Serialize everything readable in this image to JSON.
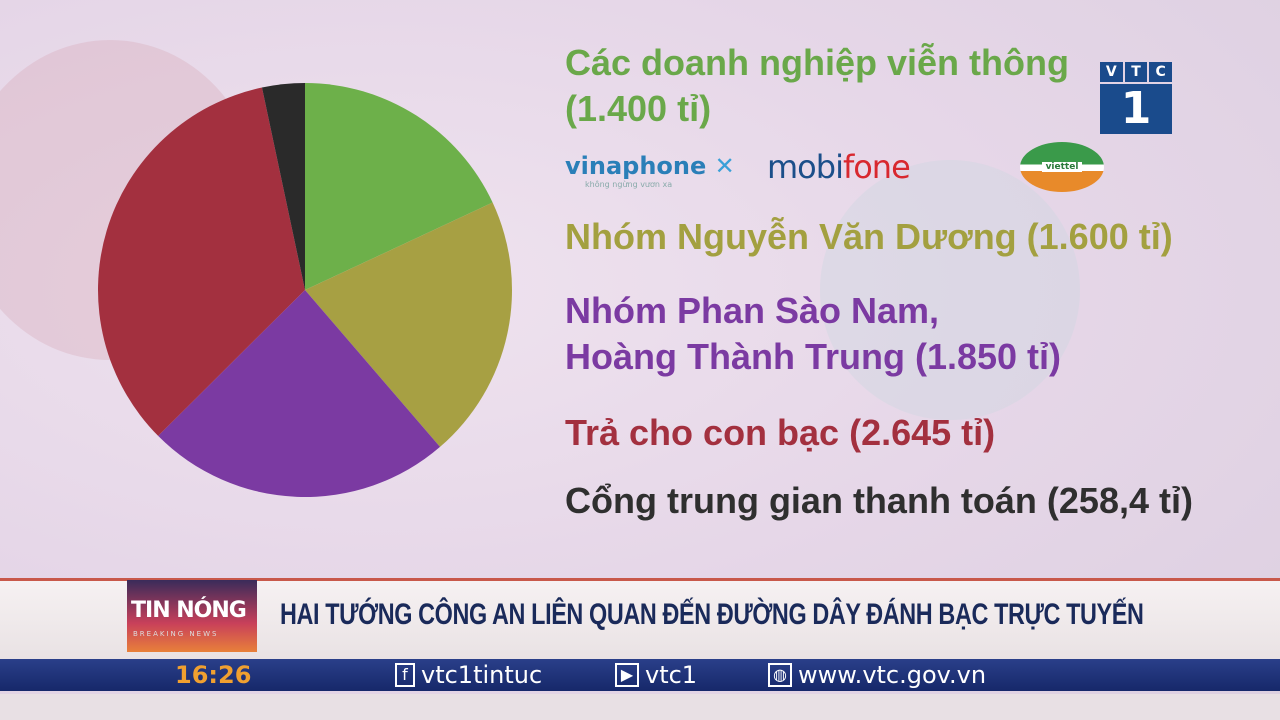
{
  "channel_logo": {
    "letters": [
      "V",
      "T",
      "C"
    ],
    "number": "1"
  },
  "chart_data": {
    "type": "pie",
    "unit": "tỉ",
    "categories": [
      "Các doanh nghiệp viễn thông",
      "Nhóm Nguyễn Văn Dương",
      "Nhóm Phan Sào Nam, Hoàng Thành Trung",
      "Trả cho con bạc",
      "Cổng trung gian thanh toán"
    ],
    "values": [
      1400,
      1600,
      1850,
      2645,
      258.4
    ],
    "colors": [
      "#6db04a",
      "#a7a043",
      "#7b3aa2",
      "#a3303f",
      "#2a2a2a"
    ],
    "legend_placement": "right"
  },
  "legend": [
    {
      "line1": "Các doanh nghiệp viễn thông",
      "line2": "(1.400 tỉ)",
      "color": "#6aa84a"
    },
    {
      "line1": "Nhóm Nguyễn Văn Dương (1.600 tỉ)",
      "line2": "",
      "color": "#a3a040"
    },
    {
      "line1": "Nhóm Phan Sào Nam,",
      "line2": "Hoàng Thành Trung (1.850 tỉ)",
      "color": "#7b3aa2"
    },
    {
      "line1": "Trả cho con bạc (2.645 tỉ)",
      "line2": "",
      "color": "#a3303f"
    },
    {
      "line1": "Cổng trung gian thanh toán (258,4 tỉ)",
      "line2": "",
      "color": "#2f2f2f"
    }
  ],
  "logos": {
    "vinaphone": "vinaphone",
    "vinaphone_tag": "không ngừng vươn xa",
    "mobifone_a": "mobi",
    "mobifone_b": "fone",
    "viettel": "viettel"
  },
  "news": {
    "badge": "TIN NÓNG",
    "badge_sub": "BREAKING NEWS",
    "headline": "HAI TƯỚNG CÔNG AN LIÊN QUAN ĐẾN ĐƯỜNG DÂY ĐÁNH BẠC TRỰC TUYẾN"
  },
  "ticker": {
    "time": "16:26",
    "facebook": "vtc1tintuc",
    "youtube": "vtc1",
    "website": "www.vtc.gov.vn"
  }
}
